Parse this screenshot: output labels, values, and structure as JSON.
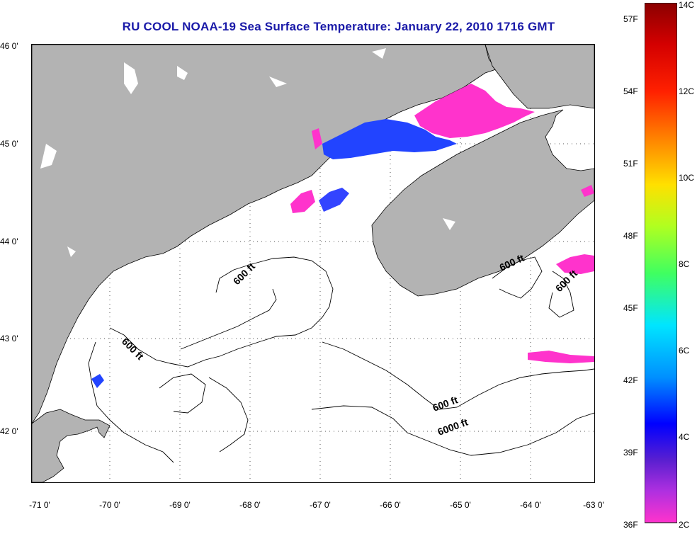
{
  "title": "RU COOL  NOAA-19  Sea Surface Temperature:  January 22, 2010 1716 GMT",
  "latitude_ticks": [
    "46 0'",
    "45 0'",
    "44 0'",
    "43 0'",
    "42 0'"
  ],
  "longitude_ticks": [
    "-71 0'",
    "-70 0'",
    "-69 0'",
    "-68 0'",
    "-67 0'",
    "-66 0'",
    "-65 0'",
    "-64 0'",
    "-63 0'"
  ],
  "contour_labels": [
    "600 ft",
    "600 ft",
    "600 ft",
    "600 ft",
    "600 ft",
    "6000 ft"
  ],
  "colorbar": {
    "fahrenheit_ticks": [
      "57F",
      "54F",
      "51F",
      "48F",
      "45F",
      "42F",
      "39F",
      "36F"
    ],
    "celsius_ticks": [
      "14C",
      "12C",
      "10C",
      "8C",
      "6C",
      "4C",
      "2C"
    ],
    "colors": {
      "warm": "#8b0000",
      "hot": "#ff0000",
      "orange": "#ff8c00",
      "yellow": "#ffff00",
      "green": "#66ff33",
      "cyan": "#00e5ff",
      "blue": "#0000ff",
      "purple": "#8a2be2",
      "magenta": "#ff33cc"
    }
  },
  "map_colors": {
    "land": "#b3b3b3",
    "ocean": "#ffffff",
    "coastline": "#000000",
    "cold_water": "#ff33cc",
    "cool_water": "#2244ff"
  }
}
